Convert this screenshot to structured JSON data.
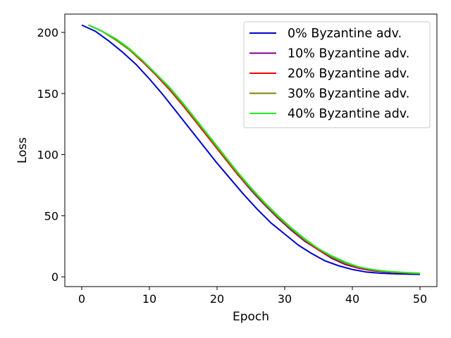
{
  "chart_data": {
    "type": "line",
    "title": "",
    "xlabel": "Epoch",
    "ylabel": "Loss",
    "xlim": [
      -2.5,
      52.5
    ],
    "ylim": [
      -8,
      215
    ],
    "xticks": [
      0,
      10,
      20,
      30,
      40,
      50
    ],
    "yticks": [
      0,
      50,
      100,
      150,
      200
    ],
    "grid": false,
    "legend_position": "top-right",
    "series": [
      {
        "name": "0% Byzantine adv.",
        "color": "#0000cc",
        "x": [
          0,
          2,
          4,
          6,
          8,
          10,
          12,
          14,
          16,
          18,
          20,
          22,
          24,
          26,
          28,
          30,
          32,
          34,
          36,
          38,
          40,
          42,
          44,
          46,
          48,
          50
        ],
        "y": [
          206,
          201,
          193,
          184,
          174,
          162,
          149,
          135,
          121,
          107,
          93,
          80,
          67,
          55,
          44,
          35,
          26,
          19,
          13,
          9,
          6,
          4,
          3,
          2.5,
          2.2,
          2
        ]
      },
      {
        "name": "10% Byzantine adv.",
        "color": "#800080",
        "x": [
          1,
          3,
          5,
          7,
          9,
          11,
          13,
          15,
          17,
          19,
          21,
          23,
          25,
          27,
          29,
          31,
          33,
          35,
          37,
          39,
          41,
          43,
          45,
          47,
          49,
          50
        ],
        "y": [
          206,
          201,
          194,
          186,
          176,
          165,
          153,
          140,
          126,
          112,
          98,
          84,
          71,
          59,
          48,
          38,
          29,
          22,
          15,
          10,
          7,
          5,
          4,
          3.3,
          2.8,
          2.6
        ]
      },
      {
        "name": "20% Byzantine adv.",
        "color": "#ff0000",
        "x": [
          1,
          3,
          5,
          7,
          9,
          11,
          13,
          15,
          17,
          19,
          21,
          23,
          25,
          27,
          29,
          31,
          33,
          35,
          37,
          39,
          41,
          43,
          45,
          47,
          49,
          50
        ],
        "y": [
          206,
          201,
          194,
          186,
          176,
          165,
          153,
          140,
          126,
          112,
          98,
          84,
          72,
          60,
          49,
          39,
          30,
          22,
          16,
          11,
          7.5,
          5.5,
          4.2,
          3.5,
          3,
          2.8
        ]
      },
      {
        "name": "30% Byzantine adv.",
        "color": "#808000",
        "x": [
          1,
          3,
          5,
          7,
          9,
          11,
          13,
          15,
          17,
          19,
          21,
          23,
          25,
          27,
          29,
          31,
          33,
          35,
          37,
          39,
          41,
          43,
          45,
          47,
          49,
          50
        ],
        "y": [
          206,
          201,
          194,
          186,
          177,
          166,
          154,
          141,
          127,
          113,
          99,
          85,
          72,
          60,
          49,
          39,
          30,
          23,
          16,
          11,
          8,
          5.8,
          4.4,
          3.6,
          3.1,
          2.9
        ]
      },
      {
        "name": "40% Byzantine adv.",
        "color": "#22ee22",
        "x": [
          1,
          3,
          5,
          7,
          9,
          11,
          13,
          15,
          17,
          19,
          21,
          23,
          25,
          27,
          29,
          31,
          33,
          35,
          37,
          39,
          41,
          43,
          45,
          47,
          49,
          50
        ],
        "y": [
          206,
          201,
          195,
          187,
          177,
          166,
          155,
          142,
          128,
          114,
          100,
          86,
          73,
          61,
          50,
          40,
          31,
          23,
          17,
          12,
          8,
          6,
          4.6,
          3.8,
          3.2,
          3
        ]
      }
    ]
  }
}
